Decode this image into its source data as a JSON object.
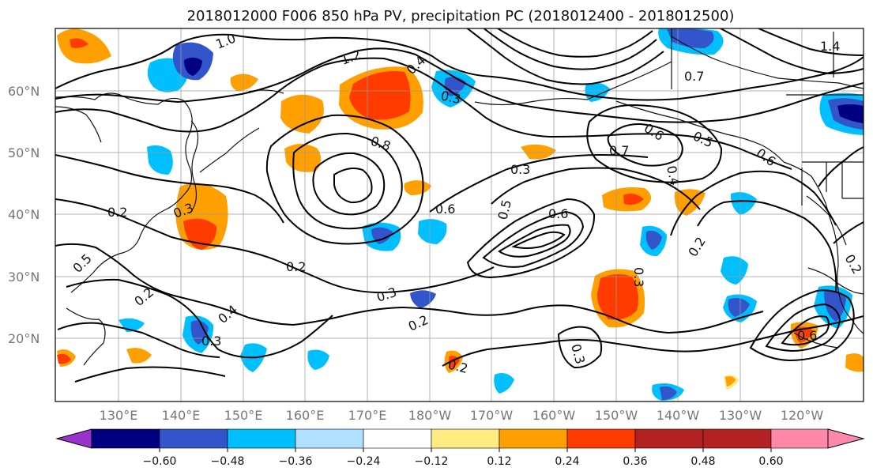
{
  "figure": {
    "title": "2018012000 F006 850 hPa PV, precipitation PC (2018012400 - 2018012500)"
  },
  "map": {
    "latitude_labels": [
      "60°N",
      "50°N",
      "40°N",
      "30°N",
      "20°N"
    ],
    "longitude_labels": [
      "130°E",
      "140°E",
      "150°E",
      "160°E",
      "170°E",
      "180°W",
      "170°W",
      "160°W",
      "150°W",
      "140°W",
      "130°W",
      "120°W"
    ],
    "contour_labels": [
      "1.0",
      "1.2",
      "0.4",
      "0.3",
      "0.2",
      "0.8",
      "0.3",
      "0.6",
      "0.5",
      "0.6",
      "0.7",
      "0.5",
      "0.6",
      "0.4",
      "0.3",
      "0.2",
      "0.2",
      "0.3",
      "0.2",
      "0.3",
      "0.4",
      "0.2",
      "0.3",
      "0.2",
      "0.6",
      "1.4",
      "0.7",
      "0.6",
      "0.2",
      "0.3",
      "0.5"
    ]
  },
  "colorbar": {
    "ticks": [
      "−0.60",
      "−0.48",
      "−0.36",
      "−0.24",
      "−0.12",
      "0.12",
      "0.24",
      "0.36",
      "0.48",
      "0.60"
    ],
    "colors": [
      "#9933cc",
      "#000080",
      "#3355cc",
      "#00bfff",
      "#b0e0ff",
      "#ffffff",
      "#ffeb80",
      "#ff9f00",
      "#ff3b00",
      "#b22222",
      "#ff88aa"
    ]
  }
}
